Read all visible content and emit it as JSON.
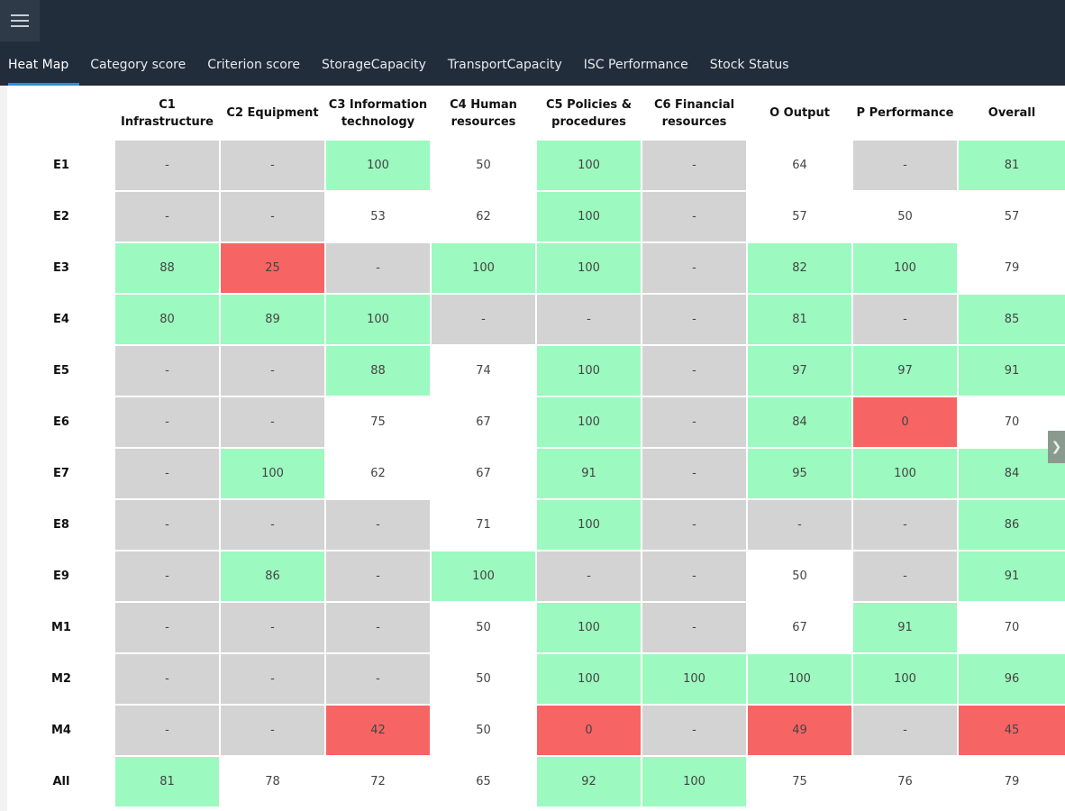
{
  "tabs": [
    "Heat Map",
    "Category score",
    "Criterion score",
    "StorageCapacity",
    "TransportCapacity",
    "ISC Performance",
    "Stock Status"
  ],
  "active_tab": 0,
  "columns": [
    [
      "C1",
      "Infrastructure"
    ],
    [
      "C2 Equipment"
    ],
    [
      "C3 Information",
      "technology"
    ],
    [
      "C4 Human",
      "resources"
    ],
    [
      "C5 Policies &",
      "procedures"
    ],
    [
      "C6 Financial",
      "resources"
    ],
    [
      "O Output"
    ],
    [
      "P Performance"
    ],
    [
      "Overall"
    ]
  ],
  "colors": {
    "good": "#9cf9bf",
    "bad": "#f76464",
    "none": "#d3d3d3",
    "neutral": "#ffffff"
  },
  "rows": [
    {
      "label": "E1",
      "cells": [
        [
          "-",
          "n"
        ],
        [
          "-",
          "n"
        ],
        [
          "100",
          "g"
        ],
        [
          "50",
          "w"
        ],
        [
          "100",
          "g"
        ],
        [
          "-",
          "n"
        ],
        [
          "64",
          "w"
        ],
        [
          "-",
          "n"
        ],
        [
          "81",
          "g"
        ]
      ]
    },
    {
      "label": "E2",
      "cells": [
        [
          "-",
          "n"
        ],
        [
          "-",
          "n"
        ],
        [
          "53",
          "w"
        ],
        [
          "62",
          "w"
        ],
        [
          "100",
          "g"
        ],
        [
          "-",
          "n"
        ],
        [
          "57",
          "w"
        ],
        [
          "50",
          "w"
        ],
        [
          "57",
          "w"
        ]
      ]
    },
    {
      "label": "E3",
      "cells": [
        [
          "88",
          "g"
        ],
        [
          "25",
          "r"
        ],
        [
          "-",
          "n"
        ],
        [
          "100",
          "g"
        ],
        [
          "100",
          "g"
        ],
        [
          "-",
          "n"
        ],
        [
          "82",
          "g"
        ],
        [
          "100",
          "g"
        ],
        [
          "79",
          "w"
        ]
      ]
    },
    {
      "label": "E4",
      "cells": [
        [
          "80",
          "g"
        ],
        [
          "89",
          "g"
        ],
        [
          "100",
          "g"
        ],
        [
          "-",
          "n"
        ],
        [
          "-",
          "n"
        ],
        [
          "-",
          "n"
        ],
        [
          "81",
          "g"
        ],
        [
          "-",
          "n"
        ],
        [
          "85",
          "g"
        ]
      ]
    },
    {
      "label": "E5",
      "cells": [
        [
          "-",
          "n"
        ],
        [
          "-",
          "n"
        ],
        [
          "88",
          "g"
        ],
        [
          "74",
          "w"
        ],
        [
          "100",
          "g"
        ],
        [
          "-",
          "n"
        ],
        [
          "97",
          "g"
        ],
        [
          "97",
          "g"
        ],
        [
          "91",
          "g"
        ]
      ]
    },
    {
      "label": "E6",
      "cells": [
        [
          "-",
          "n"
        ],
        [
          "-",
          "n"
        ],
        [
          "75",
          "w"
        ],
        [
          "67",
          "w"
        ],
        [
          "100",
          "g"
        ],
        [
          "-",
          "n"
        ],
        [
          "84",
          "g"
        ],
        [
          "0",
          "r"
        ],
        [
          "70",
          "w"
        ]
      ]
    },
    {
      "label": "E7",
      "cells": [
        [
          "-",
          "n"
        ],
        [
          "100",
          "g"
        ],
        [
          "62",
          "w"
        ],
        [
          "67",
          "w"
        ],
        [
          "91",
          "g"
        ],
        [
          "-",
          "n"
        ],
        [
          "95",
          "g"
        ],
        [
          "100",
          "g"
        ],
        [
          "84",
          "g"
        ]
      ]
    },
    {
      "label": "E8",
      "cells": [
        [
          "-",
          "n"
        ],
        [
          "-",
          "n"
        ],
        [
          "-",
          "n"
        ],
        [
          "71",
          "w"
        ],
        [
          "100",
          "g"
        ],
        [
          "-",
          "n"
        ],
        [
          "-",
          "n"
        ],
        [
          "-",
          "n"
        ],
        [
          "86",
          "g"
        ]
      ]
    },
    {
      "label": "E9",
      "cells": [
        [
          "-",
          "n"
        ],
        [
          "86",
          "g"
        ],
        [
          "-",
          "n"
        ],
        [
          "100",
          "g"
        ],
        [
          "-",
          "n"
        ],
        [
          "-",
          "n"
        ],
        [
          "50",
          "w"
        ],
        [
          "-",
          "n"
        ],
        [
          "91",
          "g"
        ]
      ]
    },
    {
      "label": "M1",
      "cells": [
        [
          "-",
          "n"
        ],
        [
          "-",
          "n"
        ],
        [
          "-",
          "n"
        ],
        [
          "50",
          "w"
        ],
        [
          "100",
          "g"
        ],
        [
          "-",
          "n"
        ],
        [
          "67",
          "w"
        ],
        [
          "91",
          "g"
        ],
        [
          "70",
          "w"
        ]
      ]
    },
    {
      "label": "M2",
      "cells": [
        [
          "-",
          "n"
        ],
        [
          "-",
          "n"
        ],
        [
          "-",
          "n"
        ],
        [
          "50",
          "w"
        ],
        [
          "100",
          "g"
        ],
        [
          "100",
          "g"
        ],
        [
          "100",
          "g"
        ],
        [
          "100",
          "g"
        ],
        [
          "96",
          "g"
        ]
      ]
    },
    {
      "label": "M4",
      "cells": [
        [
          "-",
          "n"
        ],
        [
          "-",
          "n"
        ],
        [
          "42",
          "r"
        ],
        [
          "50",
          "w"
        ],
        [
          "0",
          "r"
        ],
        [
          "-",
          "n"
        ],
        [
          "49",
          "r"
        ],
        [
          "-",
          "n"
        ],
        [
          "45",
          "r"
        ]
      ]
    },
    {
      "label": "All",
      "cells": [
        [
          "81",
          "g"
        ],
        [
          "78",
          "w"
        ],
        [
          "72",
          "w"
        ],
        [
          "65",
          "w"
        ],
        [
          "92",
          "g"
        ],
        [
          "100",
          "g"
        ],
        [
          "75",
          "w"
        ],
        [
          "76",
          "w"
        ],
        [
          "79",
          "w"
        ]
      ]
    }
  ],
  "scroll_icon": "chevron-right-icon",
  "menu_icon": "hamburger-menu-icon"
}
